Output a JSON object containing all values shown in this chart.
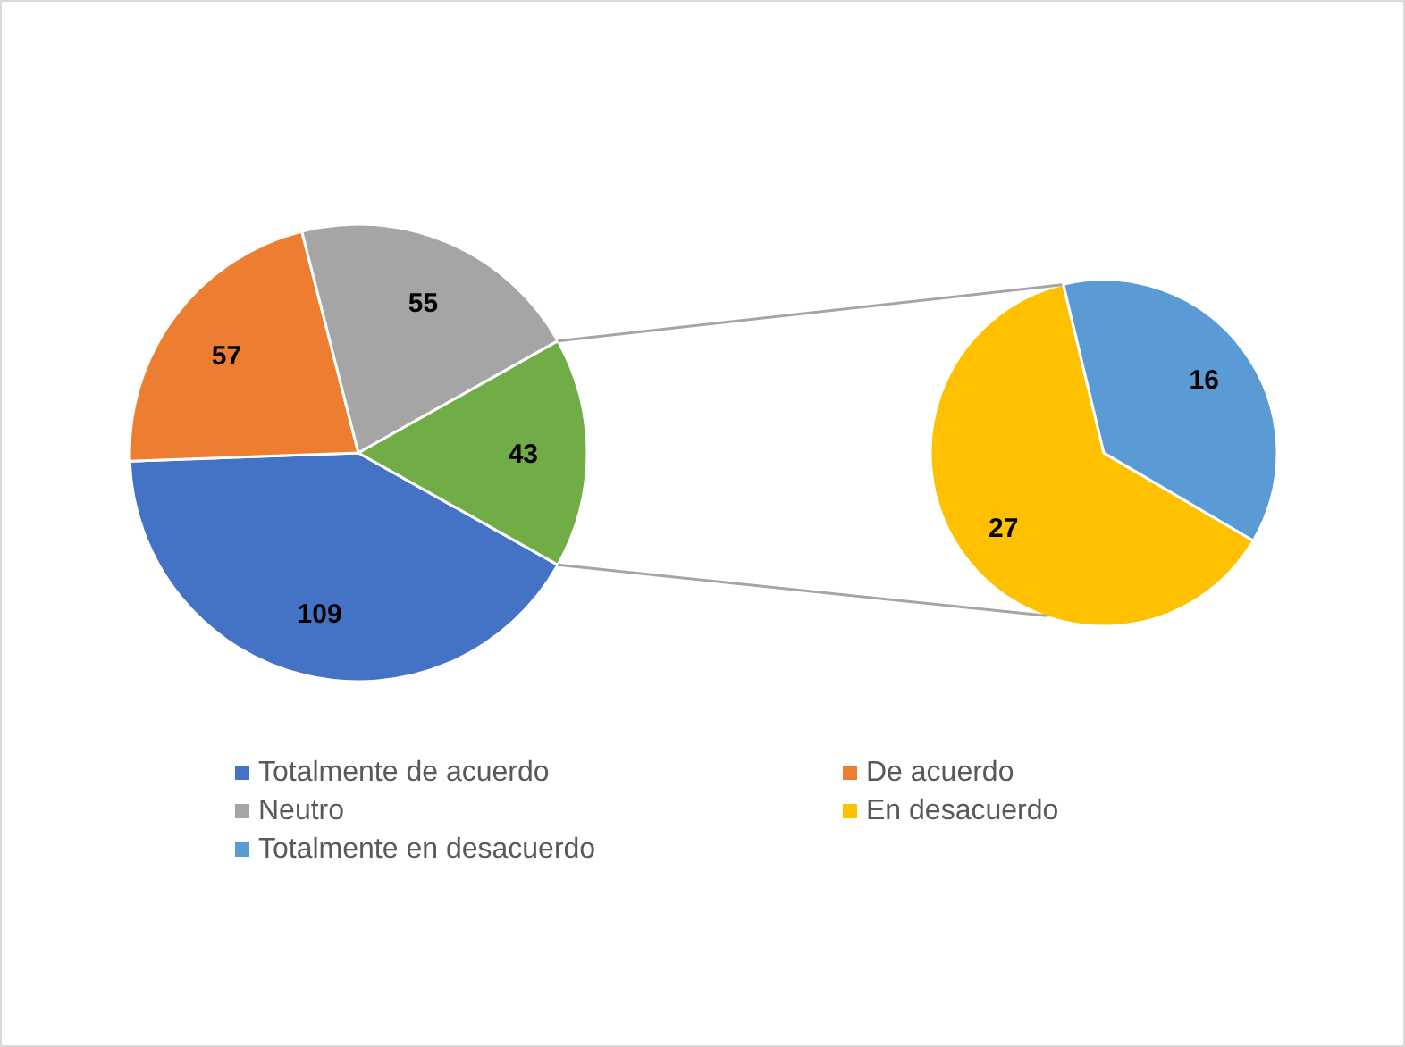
{
  "chart_data": [
    {
      "type": "pie",
      "categories": [
        "Totalmente de acuerdo",
        "De acuerdo",
        "Neutro",
        null
      ],
      "values": [
        109,
        57,
        55,
        43
      ],
      "colors": [
        "#4472c4",
        "#ed7d31",
        "#a5a5a5",
        "#70ad47"
      ],
      "data_labels": true,
      "legend": "bottom"
    },
    {
      "type": "pie",
      "categories": [
        "En desacuerdo",
        "Totalmente en desacuerdo"
      ],
      "values": [
        27,
        16
      ],
      "colors": [
        "#ffc000",
        "#5b9bd5"
      ],
      "data_labels": true,
      "legend": "bottom"
    }
  ]
}
